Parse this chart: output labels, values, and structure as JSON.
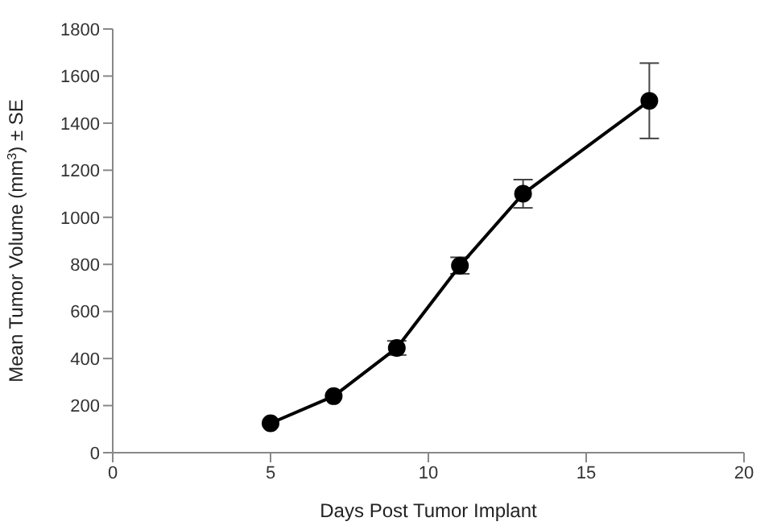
{
  "chart_data": {
    "type": "line",
    "xlabel": "Days Post Tumor Implant",
    "ylabel": "Mean Tumor Volume (mm$^{3}$) ± SE",
    "x": [
      5,
      7,
      9,
      11,
      13,
      17
    ],
    "series": [
      {
        "color": "#000000",
        "values": [
          125,
          240,
          445,
          795,
          1100,
          1495
        ],
        "errors": [
          null,
          null,
          30,
          35,
          60,
          160
        ]
      }
    ],
    "xlim": [
      0,
      20
    ],
    "xticks": [
      0,
      5,
      10,
      15,
      20
    ],
    "ylim": [
      0,
      1800
    ],
    "yticks": [
      0,
      200,
      400,
      600,
      800,
      1000,
      1200,
      1400,
      1600,
      1800
    ],
    "grid": false,
    "legend": false,
    "marker": "circle",
    "line_style": "solid"
  }
}
